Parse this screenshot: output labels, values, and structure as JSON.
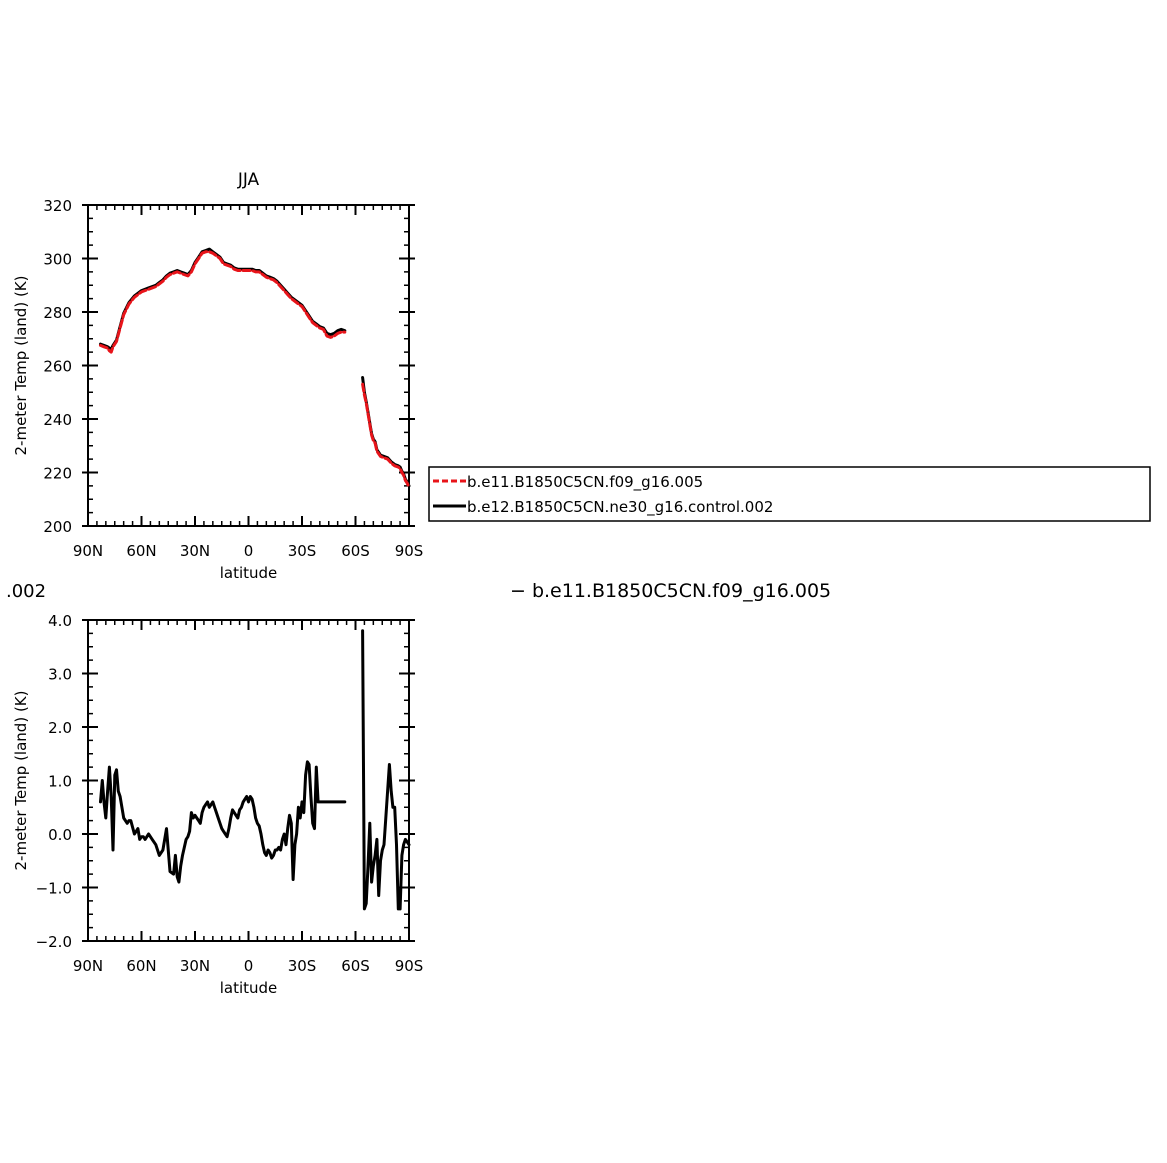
{
  "chart_data": [
    {
      "type": "line",
      "title": "JJA",
      "xlabel": "latitude",
      "ylabel": "2-meter Temp (land) (K)",
      "xlim": [
        -90,
        90
      ],
      "ylim": [
        200,
        320
      ],
      "x_ticks": [
        -90,
        -60,
        -30,
        0,
        30,
        60,
        90
      ],
      "x_tick_labels": [
        "90N",
        "60N",
        "30N",
        "0",
        "30S",
        "60S",
        "90S"
      ],
      "y_ticks": [
        200,
        220,
        240,
        260,
        280,
        300,
        320
      ],
      "y_tick_labels": [
        "200",
        "220",
        "240",
        "260",
        "280",
        "300",
        "320"
      ],
      "legend": {
        "placement": "right",
        "entries": [
          {
            "label": "b.e11.B1850C5CN.f09_g16.005",
            "color": "#e8141a",
            "dash": "dashed"
          },
          {
            "label": "b.e12.B1850C5CN.ne30_g16.control.002",
            "color": "#000000",
            "dash": "solid"
          }
        ]
      },
      "series": [
        {
          "name": "b.e11.B1850C5CN.f09_g16.005",
          "color": "#e8141a",
          "segments": [
            {
              "x": [
                -83,
                -81,
                -79,
                -78,
                -77,
                -76,
                -74,
                -72,
                -70,
                -67,
                -64,
                -60,
                -56,
                -52,
                -50,
                -48,
                -46,
                -44,
                -42,
                -40,
                -38,
                -36,
                -34,
                -32,
                -30,
                -28,
                -26,
                -24,
                -22,
                -20,
                -18,
                -16,
                -14,
                -12,
                -10,
                -8,
                -6,
                -4,
                -2,
                0,
                2,
                4,
                6,
                8,
                10,
                12,
                14,
                16,
                18,
                20,
                22,
                24,
                26,
                28,
                30,
                32,
                34,
                36,
                38,
                40,
                42,
                44,
                46,
                48,
                50,
                52,
                54
              ],
              "y": [
                267.5,
                267,
                266.5,
                265.5,
                265,
                267,
                269,
                274,
                279,
                283,
                285.5,
                287.5,
                288.5,
                289.5,
                290.5,
                291.5,
                293,
                294,
                294.5,
                295,
                294.5,
                294,
                293.5,
                295,
                298,
                300,
                302,
                302.5,
                302.5,
                302,
                301,
                300,
                298,
                297.5,
                297,
                296,
                295.5,
                295.5,
                295.5,
                295.5,
                295.5,
                295,
                295,
                294,
                293,
                292.5,
                292,
                291,
                289.5,
                288,
                286.5,
                285,
                284,
                283,
                282,
                280,
                278,
                276,
                275,
                274,
                273.5,
                271,
                270.5,
                271,
                272,
                272.5,
                272.5
              ]
            },
            {
              "x": [
                64,
                65,
                66,
                67,
                68,
                69,
                70,
                71,
                72,
                73,
                74,
                76,
                78,
                80,
                82,
                84,
                85,
                86,
                87,
                88,
                89,
                90
              ],
              "y": [
                253,
                249,
                246,
                242,
                238,
                234,
                232,
                231,
                228,
                227,
                226,
                225.5,
                225,
                223.5,
                222.5,
                222,
                221.5,
                220,
                219,
                217,
                216,
                214.5
              ]
            }
          ]
        },
        {
          "name": "b.e12.B1850C5CN.ne30_g16.control.002",
          "color": "#000000",
          "segments": [
            {
              "x": [
                -83,
                -81,
                -79,
                -78,
                -77,
                -76,
                -74,
                -72,
                -70,
                -67,
                -64,
                -60,
                -56,
                -52,
                -50,
                -48,
                -46,
                -44,
                -42,
                -40,
                -38,
                -36,
                -34,
                -32,
                -30,
                -28,
                -26,
                -24,
                -22,
                -20,
                -18,
                -16,
                -14,
                -12,
                -10,
                -8,
                -6,
                -4,
                -2,
                0,
                2,
                4,
                6,
                8,
                10,
                12,
                14,
                16,
                18,
                20,
                22,
                24,
                26,
                28,
                30,
                32,
                34,
                36,
                38,
                40,
                42,
                44,
                46,
                48,
                50,
                52,
                54
              ],
              "y": [
                268,
                267.5,
                267,
                266.5,
                266,
                267.5,
                269.5,
                274.5,
                279.5,
                283.5,
                286,
                288,
                289,
                290,
                291,
                292,
                293.5,
                294.5,
                295,
                295.5,
                295,
                294.5,
                294,
                295.5,
                298.5,
                300.5,
                302.5,
                303,
                303.5,
                302.5,
                301.5,
                300.5,
                298.5,
                298,
                297.5,
                296.5,
                296,
                296,
                296,
                296,
                296,
                295.5,
                295.5,
                294.5,
                293.5,
                293,
                292.5,
                291.5,
                290,
                288.5,
                287,
                285.5,
                284.5,
                283.5,
                282.5,
                280.5,
                278.5,
                276.5,
                275.5,
                274.5,
                274,
                272,
                271.5,
                272,
                273,
                273.5,
                273
              ]
            },
            {
              "x": [
                64,
                65,
                66,
                67,
                68,
                69,
                70,
                71,
                72,
                73,
                74,
                76,
                78,
                80,
                82,
                84,
                85,
                86,
                87,
                88,
                89,
                90
              ],
              "y": [
                255.5,
                250,
                246.5,
                242.5,
                238.5,
                234.5,
                232.5,
                231.5,
                228.5,
                227.5,
                226.5,
                226,
                225.5,
                224,
                223,
                222.5,
                222,
                220.5,
                219.5,
                217.5,
                216.5,
                215
              ]
            }
          ]
        }
      ]
    },
    {
      "type": "line",
      "title": "",
      "xlabel": "latitude",
      "ylabel": "2-meter Temp (land) (K)",
      "xlim": [
        -90,
        90
      ],
      "ylim": [
        -2.0,
        4.0
      ],
      "x_ticks": [
        -90,
        -60,
        -30,
        0,
        30,
        60,
        90
      ],
      "x_tick_labels": [
        "90N",
        "60N",
        "30N",
        "0",
        "30S",
        "60S",
        "90S"
      ],
      "y_ticks": [
        -2,
        -1,
        0,
        1,
        2,
        3,
        4
      ],
      "y_tick_labels": [
        "−2.0",
        "−1.0",
        "0.0",
        "1.0",
        "2.0",
        "3.0",
        "4.0"
      ],
      "series": [
        {
          "color": "#000000",
          "segments": [
            {
              "x": [
                -83,
                -82,
                -81,
                -80,
                -79,
                -78,
                -77,
                -76,
                -75,
                -74,
                -73,
                -72,
                -71,
                -70,
                -68,
                -67,
                -66,
                -64,
                -63,
                -62,
                -61,
                -60,
                -59,
                -58,
                -56,
                -55,
                -54,
                -52,
                -50,
                -48,
                -46,
                -44,
                -42,
                -41,
                -40,
                -39,
                -38,
                -37,
                -36,
                -35,
                -34,
                -33,
                -32,
                -31,
                -30,
                -29,
                -28,
                -27,
                -26,
                -25,
                -24,
                -23,
                -22,
                -21,
                -20,
                -19,
                -18,
                -17,
                -16,
                -15,
                -14,
                -13,
                -12,
                -11,
                -10,
                -9,
                -8,
                -7,
                -6,
                -5,
                -4,
                -3,
                -2,
                -1,
                0,
                1,
                2,
                3,
                4,
                5,
                6,
                7,
                8,
                9,
                10,
                11,
                12,
                13,
                14,
                15,
                16,
                17,
                18,
                19,
                20,
                21,
                22,
                23,
                24,
                25,
                26,
                27,
                28,
                29,
                30,
                31,
                32,
                33,
                34,
                35,
                36,
                37,
                38,
                39,
                40,
                41,
                42,
                43,
                44,
                45,
                46,
                47,
                48,
                49,
                50,
                51,
                52,
                53,
                54
              ],
              "y": [
                0.6,
                1.0,
                0.6,
                0.3,
                0.8,
                1.25,
                0.7,
                -0.3,
                1.1,
                1.2,
                0.8,
                0.7,
                0.5,
                0.3,
                0.2,
                0.25,
                0.25,
                0.0,
                0.05,
                0.1,
                -0.1,
                -0.05,
                -0.05,
                -0.1,
                0.0,
                -0.05,
                -0.1,
                -0.2,
                -0.4,
                -0.3,
                0.1,
                -0.7,
                -0.75,
                -0.4,
                -0.8,
                -0.9,
                -0.6,
                -0.4,
                -0.25,
                -0.1,
                -0.05,
                0.05,
                0.4,
                0.3,
                0.35,
                0.3,
                0.25,
                0.2,
                0.4,
                0.5,
                0.55,
                0.6,
                0.5,
                0.55,
                0.6,
                0.5,
                0.4,
                0.3,
                0.2,
                0.1,
                0.05,
                0.0,
                -0.05,
                0.1,
                0.3,
                0.45,
                0.4,
                0.35,
                0.3,
                0.45,
                0.5,
                0.6,
                0.65,
                0.7,
                0.6,
                0.7,
                0.65,
                0.5,
                0.3,
                0.2,
                0.15,
                0.0,
                -0.2,
                -0.35,
                -0.4,
                -0.3,
                -0.35,
                -0.45,
                -0.4,
                -0.3,
                -0.3,
                -0.25,
                -0.3,
                -0.1,
                0.0,
                -0.2,
                0.1,
                0.35,
                0.2,
                -0.85,
                -0.2,
                0.0,
                0.5,
                0.3,
                0.6,
                0.4,
                1.1,
                1.35,
                1.3,
                0.7,
                0.2,
                0.1,
                1.25,
                0.6,
                0.6,
                0.6,
                0.6,
                0.6,
                0.6,
                0.6,
                0.6,
                0.6,
                0.6,
                0.6,
                0.6,
                0.6,
                0.6,
                0.6,
                0.6
              ]
            },
            {
              "x": [
                64,
                65,
                66,
                67,
                68,
                69,
                70,
                71,
                72,
                73,
                74,
                75,
                76,
                77,
                78,
                79,
                80,
                81,
                82,
                83,
                84,
                85,
                86,
                87,
                88,
                89,
                90
              ],
              "y": [
                3.8,
                -1.4,
                -1.3,
                -0.6,
                0.2,
                -0.9,
                -0.6,
                -0.4,
                -0.1,
                -1.15,
                -0.5,
                -0.3,
                -0.2,
                0.3,
                0.8,
                1.3,
                0.8,
                0.5,
                0.5,
                -0.2,
                -1.4,
                -1.4,
                -0.4,
                -0.2,
                -0.1,
                -0.15,
                -0.2
              ]
            }
          ]
        }
      ]
    }
  ],
  "fragments": {
    "left_text": ".002",
    "right_text": "−  b.e11.B1850C5CN.f09_g16.005"
  }
}
